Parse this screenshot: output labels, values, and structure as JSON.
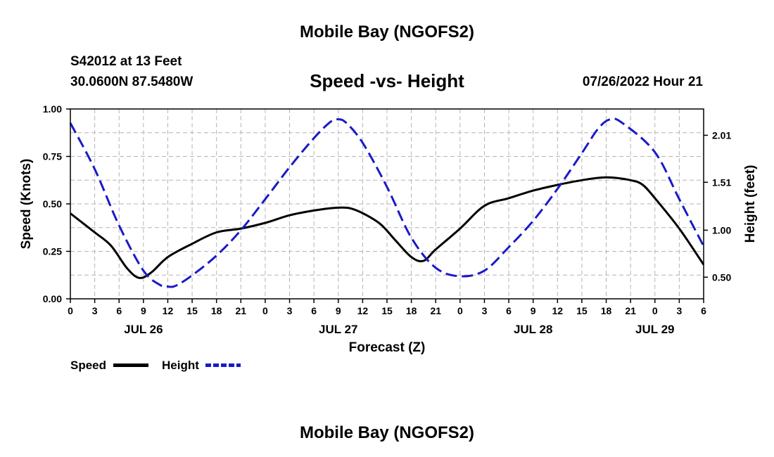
{
  "header": {
    "title_top": "Mobile Bay (NGOFS2)",
    "title_bottom": "Mobile Bay (NGOFS2)",
    "station": "S42012 at 13 Feet",
    "coords": "30.0600N  87.5480W",
    "subtitle": "Speed -vs- Height",
    "datetime": "07/26/2022 Hour 21"
  },
  "legend": {
    "speed_label": "Speed",
    "height_label": "Height"
  },
  "colors": {
    "speed": "#000000",
    "height": "#1a1ac8",
    "grid": "#b4b4b4"
  },
  "chart_data": {
    "type": "line",
    "title": "Speed -vs- Height",
    "xlabel": "Forecast (Z)",
    "ylabel": "Speed (Knots)",
    "y2label": "Height (feet)",
    "xlim": [
      0,
      78
    ],
    "ylim": [
      0,
      1.0
    ],
    "y2lim": [
      0.27,
      2.29
    ],
    "xtick_hours": [
      0,
      3,
      6,
      9,
      12,
      15,
      18,
      21,
      24,
      27,
      30,
      33,
      36,
      39,
      42,
      45,
      48,
      51,
      54,
      57,
      60,
      63,
      66,
      69,
      72,
      75,
      78
    ],
    "xtick_labels": [
      "0",
      "3",
      "6",
      "9",
      "12",
      "15",
      "18",
      "21",
      "0",
      "3",
      "6",
      "9",
      "12",
      "15",
      "18",
      "21",
      "0",
      "3",
      "6",
      "9",
      "12",
      "15",
      "18",
      "21",
      "0",
      "3",
      "6"
    ],
    "date_labels": [
      {
        "hour": 9,
        "label": "JUL 26"
      },
      {
        "hour": 33,
        "label": "JUL 27"
      },
      {
        "hour": 57,
        "label": "JUL 28"
      },
      {
        "hour": 72,
        "label": "JUL 29"
      }
    ],
    "yticks": [
      0.0,
      0.25,
      0.5,
      0.75,
      1.0
    ],
    "ytick_labels": [
      "0.00",
      "0.25",
      "0.50",
      "0.75",
      "1.00"
    ],
    "y2ticks": [
      0.5,
      1.0,
      1.51,
      2.01
    ],
    "y2tick_labels": [
      "0.50",
      "1.00",
      "1.51",
      "2.01"
    ],
    "series": [
      {
        "name": "Speed",
        "axis": "left",
        "style": "solid",
        "x": [
          0,
          3,
          5,
          7,
          8.5,
          10,
          12,
          15,
          18,
          21,
          24,
          27,
          30,
          33,
          35,
          38,
          40,
          42,
          43.5,
          45,
          48,
          51,
          54,
          57,
          60,
          63,
          66,
          69,
          70.5,
          72,
          75,
          78
        ],
        "values": [
          0.45,
          0.35,
          0.28,
          0.16,
          0.11,
          0.14,
          0.22,
          0.29,
          0.35,
          0.37,
          0.4,
          0.44,
          0.465,
          0.48,
          0.47,
          0.4,
          0.31,
          0.22,
          0.2,
          0.26,
          0.37,
          0.49,
          0.53,
          0.57,
          0.6,
          0.625,
          0.64,
          0.625,
          0.6,
          0.53,
          0.37,
          0.18
        ]
      },
      {
        "name": "Height",
        "axis": "right",
        "style": "dashed",
        "x": [
          0,
          3,
          6,
          9,
          11,
          12,
          13,
          15,
          18,
          21,
          24,
          27,
          30,
          32,
          33,
          34,
          36,
          39,
          42,
          45,
          48,
          51,
          54,
          57,
          60,
          63,
          65,
          66.5,
          68,
          72,
          75,
          78
        ],
        "values": [
          2.14,
          1.65,
          1.05,
          0.57,
          0.42,
          0.4,
          0.41,
          0.52,
          0.73,
          1.0,
          1.33,
          1.67,
          1.98,
          2.15,
          2.18,
          2.14,
          1.93,
          1.46,
          0.92,
          0.6,
          0.51,
          0.57,
          0.82,
          1.1,
          1.44,
          1.82,
          2.08,
          2.18,
          2.14,
          1.83,
          1.33,
          0.83
        ]
      }
    ]
  }
}
